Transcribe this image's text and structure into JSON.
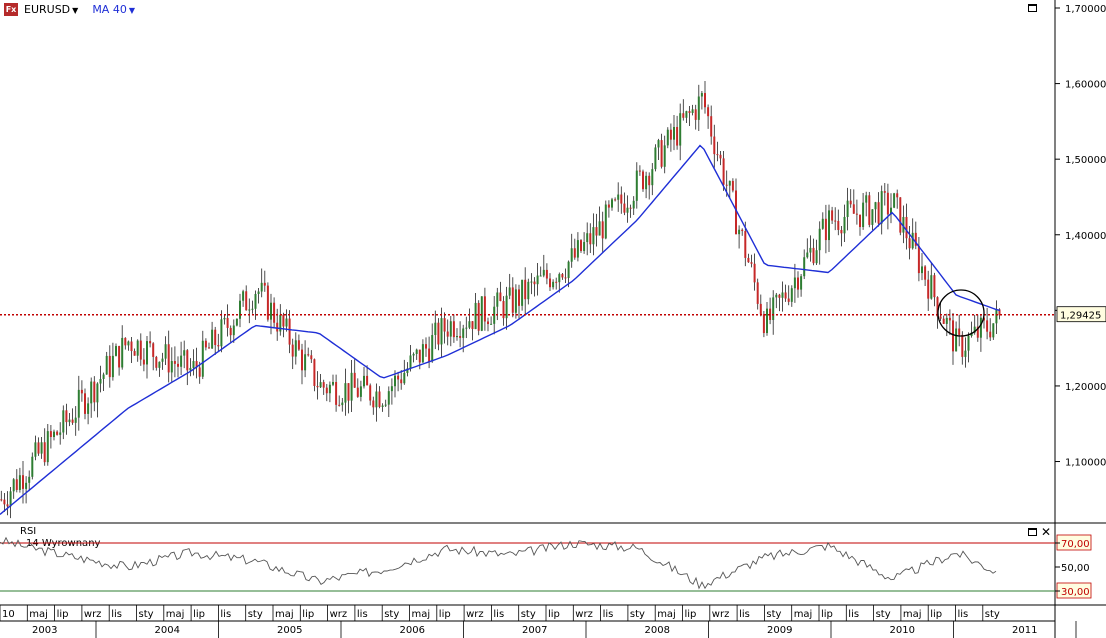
{
  "toolbar": {
    "logo_text": "Fx",
    "symbol": "EURUSD",
    "indicator": "MA 40"
  },
  "rsi_panel": {
    "title": "RSI",
    "subtitle": "14 Wyrownany"
  },
  "colors": {
    "candle_up": "#2e7d32",
    "candle_down": "#c62828",
    "ma_line": "#1f2fd6",
    "price_line": "#c00000",
    "rsi_upper": "#c00000",
    "rsi_lower": "#2e7d32",
    "rsi_line": "#555555"
  },
  "chart_data": [
    {
      "type": "line",
      "title": "EURUSD",
      "y_axis_ticks": [
        "1,10000",
        "1,20000",
        "1,30000",
        "1,40000",
        "1,50000",
        "1,60000",
        "1,70000"
      ],
      "ylim": [
        1.02,
        1.7
      ],
      "current_price_label": "1,29425",
      "current_price": 1.29425,
      "x": [
        "2003-01",
        "2003-07",
        "2004-01",
        "2004-07",
        "2005-01",
        "2005-07",
        "2006-01",
        "2006-07",
        "2007-01",
        "2007-07",
        "2008-01",
        "2008-07",
        "2009-01",
        "2009-07",
        "2010-01",
        "2010-07",
        "2010-11"
      ],
      "series": [
        {
          "name": "EURUSD",
          "values": [
            1.05,
            1.15,
            1.26,
            1.22,
            1.33,
            1.2,
            1.19,
            1.28,
            1.31,
            1.37,
            1.47,
            1.58,
            1.28,
            1.42,
            1.44,
            1.25,
            1.29
          ]
        },
        {
          "name": "MA 40",
          "values": [
            1.03,
            1.1,
            1.17,
            1.22,
            1.28,
            1.27,
            1.21,
            1.24,
            1.28,
            1.34,
            1.42,
            1.52,
            1.36,
            1.35,
            1.43,
            1.32,
            1.3
          ]
        }
      ],
      "x_tick_labels_months": [
        "10",
        "maj",
        "lip",
        "wrz",
        "lis",
        "sty",
        "maj",
        "lip",
        "lis",
        "sty",
        "maj",
        "lip",
        "wrz",
        "lis",
        "sty",
        "maj",
        "lip",
        "wrz",
        "lis",
        "sty",
        "lip",
        "wrz",
        "lis",
        "sty",
        "maj",
        "lip",
        "wrz",
        "lis",
        "sty",
        "maj",
        "lip",
        "lis",
        "sty",
        "maj",
        "lip",
        "lis",
        "sty"
      ],
      "x_tick_labels_years": [
        "2003",
        "2004",
        "2005",
        "2006",
        "2007",
        "2008",
        "2009",
        "2010",
        "2011"
      ],
      "grid": false
    },
    {
      "type": "line",
      "title": "RSI",
      "y_axis_ticks": [
        "70,00",
        "50,00",
        "30,00"
      ],
      "ylim": [
        20,
        80
      ],
      "levels": [
        70,
        30
      ],
      "x": [
        "2003-01",
        "2003-07",
        "2004-01",
        "2004-07",
        "2005-01",
        "2005-07",
        "2006-01",
        "2006-07",
        "2007-01",
        "2007-07",
        "2008-01",
        "2008-07",
        "2009-01",
        "2009-07",
        "2010-01",
        "2010-07",
        "2010-11"
      ],
      "series": [
        {
          "name": "14 Wyrownany",
          "values": [
            72,
            60,
            50,
            62,
            55,
            38,
            48,
            65,
            60,
            70,
            66,
            35,
            58,
            68,
            40,
            62,
            45
          ]
        }
      ]
    }
  ]
}
